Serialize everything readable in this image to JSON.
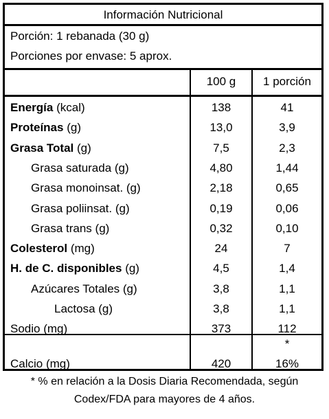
{
  "title": "Información Nutricional",
  "serving": {
    "portion": "Porción:  1 rebanada (30 g)",
    "per_package": "Porciones por envase:   5 aprox."
  },
  "columns": [
    "100 g",
    "1 porción"
  ],
  "rows": [
    {
      "bold": "Energía",
      "unit": " (kcal)",
      "v100": "138",
      "vport": "41"
    },
    {
      "bold": "Proteínas",
      "unit": " (g)",
      "v100": "13,0",
      "vport": "3,9"
    },
    {
      "bold": "Grasa Total",
      "unit": " (g)",
      "v100": "7,5",
      "vport": "2,3"
    },
    {
      "bold": "",
      "unit": "Grasa saturada (g)",
      "v100": "4,80",
      "vport": "1,44"
    },
    {
      "bold": "",
      "unit": "Grasa monoinsat. (g)",
      "v100": "2,18",
      "vport": "0,65"
    },
    {
      "bold": "",
      "unit": "Grasa poliinsat. (g)",
      "v100": "0,19",
      "vport": "0,06"
    },
    {
      "bold": "",
      "unit": "Grasa trans (g)",
      "v100": "0,32",
      "vport": "0,10"
    },
    {
      "bold": "Colesterol",
      "unit": " (mg)",
      "v100": "24",
      "vport": "7"
    },
    {
      "bold": "H. de C. disponibles",
      "unit": " (g)",
      "v100": "4,5",
      "vport": "1,4"
    },
    {
      "bold": "",
      "unit": "Azúcares Totales (g)",
      "v100": "3,8",
      "vport": "1,1"
    },
    {
      "bold": "",
      "unit": "Lactosa (g)",
      "v100": "3,8",
      "vport": "1,1"
    },
    {
      "bold": "",
      "unit": "Sodio (mg)",
      "v100": "373",
      "vport": "112"
    }
  ],
  "calcio": {
    "label": "Calcio (mg)",
    "v100": "420",
    "vport": "16%",
    "asterisk": "*"
  },
  "footnote": {
    "line1": "* % en relación a la Dosis Diaria Recomendada, según",
    "line2": "Codex/FDA para mayores de 4 años."
  }
}
